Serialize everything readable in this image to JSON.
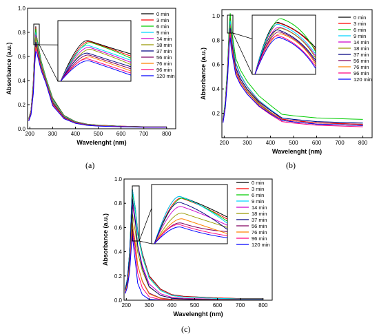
{
  "legend_labels": [
    "0 min",
    "3 min",
    "6 min",
    "9 min",
    "14 min",
    "18 min",
    "37 min",
    "56 min",
    "76 min",
    "96 min",
    "120 min"
  ],
  "series_colors": [
    "#000000",
    "#ff0000",
    "#00cc00",
    "#00d5ff",
    "#cc00cc",
    "#999900",
    "#000080",
    "#800060",
    "#ff8000",
    "#ff007f",
    "#0000ff"
  ],
  "chart_data": [
    {
      "type": "line",
      "caption": "(a)",
      "xlabel": "Wavelenght (nm)",
      "ylabel": "Absorbance (a.u.)",
      "xlim": [
        190,
        840
      ],
      "ylim": [
        0.0,
        1.0
      ],
      "xticks": [
        200,
        300,
        400,
        500,
        600,
        700,
        800
      ],
      "yticks": [
        0.0,
        0.2,
        0.4,
        0.6,
        0.8,
        1.0
      ],
      "legend_position": "top-right",
      "inset": "zoomed peak region around 225 nm",
      "x": [
        195,
        205,
        215,
        222,
        226,
        230,
        240,
        250,
        270,
        300,
        350,
        400,
        450,
        500,
        600,
        700,
        800
      ],
      "peaks": [
        0.85,
        0.84,
        0.83,
        0.8,
        0.78,
        0.76,
        0.72,
        0.7,
        0.68,
        0.66,
        0.64
      ],
      "series_shape": [
        0.1,
        0.18,
        0.45,
        0.85,
        1.0,
        0.9,
        0.78,
        0.66,
        0.5,
        0.3,
        0.13,
        0.07,
        0.045,
        0.035,
        0.025,
        0.02,
        0.02
      ]
    },
    {
      "type": "line",
      "caption": "(b)",
      "xlabel": "Wavelenght (nm)",
      "ylabel": "Absorbance (a.u.)",
      "xlim": [
        190,
        840
      ],
      "ylim": [
        0.0,
        1.05
      ],
      "xticks": [
        200,
        300,
        400,
        500,
        600,
        700,
        800
      ],
      "yticks": [
        0.2,
        0.4,
        0.6,
        0.8,
        1.0
      ],
      "legend_position": "top-right",
      "inset": "zoomed peak region around 225 nm",
      "x": [
        195,
        205,
        215,
        222,
        226,
        230,
        240,
        250,
        270,
        300,
        350,
        400,
        450,
        500,
        600,
        700,
        800
      ],
      "peaks": [
        0.98,
        0.97,
        1.02,
        0.96,
        0.93,
        0.92,
        0.9,
        0.88,
        0.86,
        0.84,
        0.82
      ],
      "tails": [
        0.11,
        0.11,
        0.15,
        0.12,
        0.1,
        0.1,
        0.12,
        0.1,
        0.1,
        0.09,
        0.1
      ],
      "series_shape": [
        0.15,
        0.3,
        0.6,
        0.92,
        1.0,
        0.9,
        0.75,
        0.62,
        0.52,
        0.42,
        0.3,
        0.22,
        0.17,
        0.15,
        0.12,
        0.11,
        0.1
      ]
    },
    {
      "type": "line",
      "caption": "(c)",
      "xlabel": "Wavelenght (nm)",
      "ylabel": "Absorbance (a.u.)",
      "xlim": [
        190,
        840
      ],
      "ylim": [
        0.0,
        1.0
      ],
      "xticks": [
        200,
        300,
        400,
        500,
        600,
        700,
        800
      ],
      "yticks": [
        0.0,
        0.2,
        0.4,
        0.6,
        0.8,
        1.0
      ],
      "legend_position": "top-right",
      "inset": "zoomed peak region around 225 nm",
      "x": [
        195,
        205,
        215,
        222,
        226,
        230,
        240,
        250,
        270,
        300,
        350,
        400,
        450,
        500,
        600,
        700,
        800
      ],
      "peaks": [
        0.92,
        0.9,
        0.9,
        0.92,
        0.8,
        0.72,
        0.85,
        0.6,
        0.65,
        0.58,
        0.55
      ],
      "decay": [
        1.0,
        1.0,
        0.95,
        0.95,
        0.85,
        0.8,
        0.75,
        0.65,
        0.6,
        0.5,
        0.35
      ],
      "series_shape": [
        0.1,
        0.2,
        0.45,
        0.8,
        1.0,
        0.95,
        0.82,
        0.62,
        0.42,
        0.22,
        0.1,
        0.05,
        0.035,
        0.03,
        0.02,
        0.015,
        0.015
      ]
    }
  ]
}
